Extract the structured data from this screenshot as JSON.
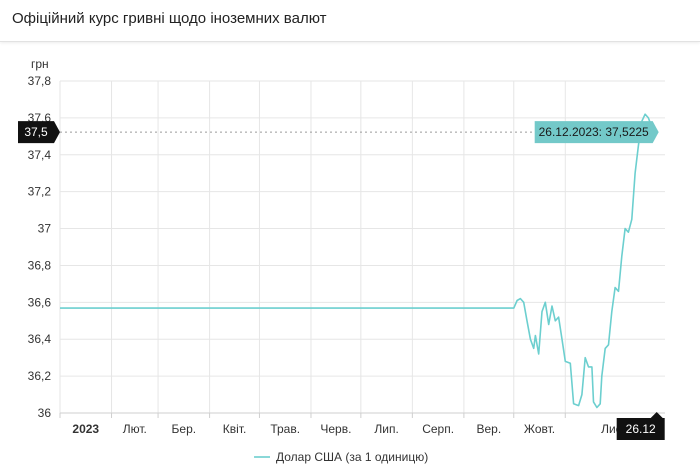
{
  "header": {
    "title": "Офіційний курс гривні щодо іноземних валют"
  },
  "colors": {
    "series": "#6ccfcf",
    "tooltip_bg": "#73c9c9",
    "marker_bg": "#111111",
    "grid": "#e6e6e6"
  },
  "chart_data": {
    "type": "line",
    "ylabel": "грн",
    "ylim": [
      36,
      37.8
    ],
    "yticks": [
      36,
      36.2,
      36.4,
      36.6,
      36.8,
      37,
      37.2,
      37.4,
      37.6,
      37.8
    ],
    "ytick_labels": [
      "36",
      "36,2",
      "36,4",
      "36,6",
      "36,8",
      "37",
      "37,2",
      "37,4",
      "37,6",
      "37,8"
    ],
    "xlim": [
      "2023-01-01",
      "2023-12-31"
    ],
    "xticks": [
      {
        "date": "2023-01-01",
        "label": "2023"
      },
      {
        "date": "2023-02-01",
        "label": "Лют."
      },
      {
        "date": "2023-03-01",
        "label": "Бер."
      },
      {
        "date": "2023-04-01",
        "label": "Квіт."
      },
      {
        "date": "2023-05-01",
        "label": "Трав."
      },
      {
        "date": "2023-06-01",
        "label": "Черв."
      },
      {
        "date": "2023-07-01",
        "label": "Лип."
      },
      {
        "date": "2023-08-01",
        "label": "Серп."
      },
      {
        "date": "2023-09-01",
        "label": "Вер."
      },
      {
        "date": "2023-10-01",
        "label": "Жовт."
      },
      {
        "date": "2023-11-01",
        "label": "Лист."
      }
    ],
    "grid": true,
    "legend_position": "bottom-center",
    "series": [
      {
        "name": "Долар США (за 1 одиницю)",
        "points": [
          [
            "2022-12-29",
            36.5686
          ],
          [
            "2023-10-01",
            36.5686
          ],
          [
            "2023-10-03",
            36.61
          ],
          [
            "2023-10-05",
            36.62
          ],
          [
            "2023-10-07",
            36.6
          ],
          [
            "2023-10-09",
            36.5
          ],
          [
            "2023-10-11",
            36.4
          ],
          [
            "2023-10-13",
            36.35
          ],
          [
            "2023-10-14",
            36.42
          ],
          [
            "2023-10-16",
            36.32
          ],
          [
            "2023-10-18",
            36.55
          ],
          [
            "2023-10-20",
            36.6
          ],
          [
            "2023-10-22",
            36.48
          ],
          [
            "2023-10-24",
            36.58
          ],
          [
            "2023-10-26",
            36.5
          ],
          [
            "2023-10-28",
            36.52
          ],
          [
            "2023-10-30",
            36.4
          ],
          [
            "2023-11-01",
            36.28
          ],
          [
            "2023-11-04",
            36.27
          ],
          [
            "2023-11-06",
            36.05
          ],
          [
            "2023-11-09",
            36.04
          ],
          [
            "2023-11-11",
            36.1
          ],
          [
            "2023-11-13",
            36.3
          ],
          [
            "2023-11-15",
            36.25
          ],
          [
            "2023-11-17",
            36.25
          ],
          [
            "2023-11-18",
            36.06
          ],
          [
            "2023-11-20",
            36.03
          ],
          [
            "2023-11-22",
            36.05
          ],
          [
            "2023-11-23",
            36.2
          ],
          [
            "2023-11-25",
            36.35
          ],
          [
            "2023-11-27",
            36.37
          ],
          [
            "2023-11-29",
            36.55
          ],
          [
            "2023-12-01",
            36.68
          ],
          [
            "2023-12-03",
            36.66
          ],
          [
            "2023-12-05",
            36.85
          ],
          [
            "2023-12-07",
            37.0
          ],
          [
            "2023-12-09",
            36.98
          ],
          [
            "2023-12-11",
            37.05
          ],
          [
            "2023-12-13",
            37.3
          ],
          [
            "2023-12-15",
            37.45
          ],
          [
            "2023-12-17",
            37.58
          ],
          [
            "2023-12-19",
            37.62
          ],
          [
            "2023-12-21",
            37.6
          ],
          [
            "2023-12-23",
            37.55
          ],
          [
            "2023-12-26",
            37.5225
          ]
        ]
      }
    ],
    "highlight": {
      "date_label": "26.12",
      "value_label": "37,5",
      "tooltip": "26.12.2023: 37,5225",
      "date": "2023-12-26",
      "value": 37.5225
    }
  }
}
